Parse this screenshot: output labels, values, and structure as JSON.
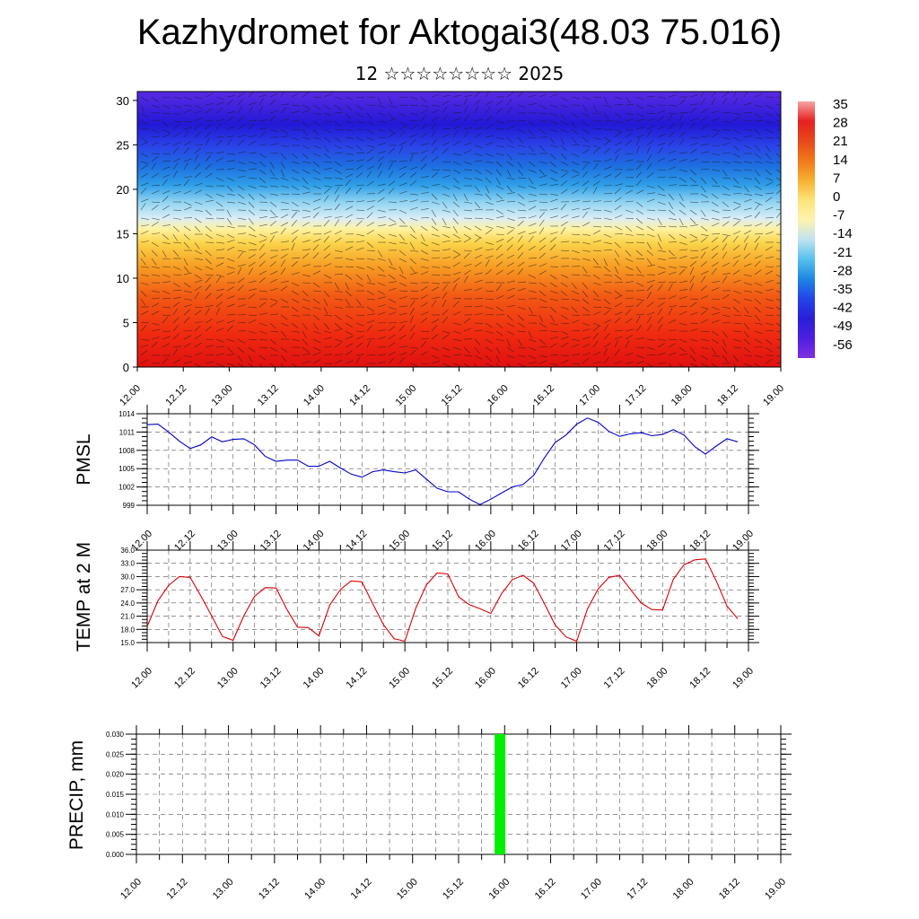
{
  "header": {
    "title": "Kazhydromet for Aktogai3(48.03 75.016)",
    "subtitle": "12 ☆☆☆☆☆☆☆☆ 2025"
  },
  "time_labels": [
    "12.00",
    "12.12",
    "13.00",
    "13.12",
    "14.00",
    "14.12",
    "15.00",
    "15.12",
    "16.00",
    "16.12",
    "17.00",
    "17.12",
    "18.00",
    "18.12",
    "19.00"
  ],
  "chart_data": [
    {
      "type": "heatmap",
      "title": "",
      "x_labels": [
        "12.00",
        "12.12",
        "13.00",
        "13.12",
        "14.00",
        "14.12",
        "15.00",
        "15.12",
        "16.00",
        "16.12",
        "17.00",
        "17.12",
        "18.00",
        "18.12",
        "19.00"
      ],
      "y_ticks": [
        "0",
        "5",
        "10",
        "15",
        "20",
        "25",
        "30"
      ],
      "ylim": [
        0,
        31
      ],
      "colorbar": {
        "labels": [
          "35",
          "28",
          "21",
          "14",
          "7",
          "0",
          "-7",
          "-14",
          "-21",
          "-28",
          "-35",
          "-42",
          "-49",
          "-56"
        ],
        "range": [
          35,
          -56
        ],
        "colors": [
          "#f7a4a4",
          "#e62020",
          "#e8481a",
          "#f07a1a",
          "#f7b032",
          "#fde47a",
          "#fef3b0",
          "#bfe3f2",
          "#57c0ee",
          "#1e86e2",
          "#2244e8",
          "#2a1ed8",
          "#4e1ee0",
          "#8030e0"
        ]
      },
      "overlay": "wind vectors"
    },
    {
      "type": "line",
      "ylabel": "PMSL",
      "ylim": [
        999,
        1014
      ],
      "y_ticks": [
        "1014",
        "1011",
        "1008",
        "1005",
        "1002",
        "999"
      ],
      "x_labels": [
        "12.00",
        "12.12",
        "13.00",
        "13.12",
        "14.00",
        "14.12",
        "15.00",
        "15.12",
        "16.00",
        "16.12",
        "17.00",
        "17.12",
        "18.00",
        "18.12",
        "19.00"
      ],
      "x": [
        0,
        0.25,
        0.5,
        0.75,
        1,
        1.25,
        1.5,
        1.75,
        2,
        2.25,
        2.5,
        2.75,
        3,
        3.25,
        3.5,
        3.75,
        4,
        4.25,
        4.5,
        4.75,
        5,
        5.25,
        5.5,
        5.75,
        6,
        6.25,
        6.5,
        6.75,
        7,
        7.25,
        7.5,
        7.75,
        8,
        8.25,
        8.5,
        8.75,
        9,
        9.25,
        9.5,
        9.75,
        10,
        10.25,
        10.5,
        10.75,
        11,
        11.25,
        11.5,
        11.75,
        12,
        12.25,
        12.5,
        12.75,
        13,
        13.25,
        13.5,
        13.75
      ],
      "series": [
        {
          "color": "#0000cc",
          "values": [
            1012.2,
            1012.3,
            1011,
            1009.5,
            1008.3,
            1008.9,
            1010.2,
            1009.4,
            1009.8,
            1009.9,
            1008.9,
            1007,
            1006.2,
            1006.4,
            1006.4,
            1005.4,
            1005.4,
            1006.2,
            1005.1,
            1004.1,
            1003.6,
            1004.5,
            1004.8,
            1004.5,
            1004.3,
            1004.8,
            1003.3,
            1001.8,
            1001.2,
            1001.2,
            1000,
            999.1,
            1000,
            1001,
            1002,
            1002.4,
            1003.9,
            1006.8,
            1009.3,
            1010.5,
            1012.3,
            1013.3,
            1012.6,
            1011.1,
            1010.3,
            1010.7,
            1010.9,
            1010.4,
            1010.6,
            1011.4,
            1010.5,
            1008.6,
            1007.4,
            1008.7,
            1009.9,
            1009.4
          ]
        }
      ]
    },
    {
      "type": "line",
      "ylabel": "TEMP at 2 M",
      "ylim": [
        15,
        36
      ],
      "y_ticks": [
        "36.0",
        "33.0",
        "30.0",
        "27.0",
        "24.0",
        "21.0",
        "18.0",
        "15.0"
      ],
      "x_labels": [
        "12.00",
        "12.12",
        "13.00",
        "13.12",
        "14.00",
        "14.12",
        "15.00",
        "15.12",
        "16.00",
        "16.12",
        "17.00",
        "17.12",
        "18.00",
        "18.12",
        "19.00"
      ],
      "x": [
        0,
        0.25,
        0.5,
        0.75,
        1,
        1.25,
        1.5,
        1.75,
        2,
        2.25,
        2.5,
        2.75,
        3,
        3.25,
        3.5,
        3.75,
        4,
        4.25,
        4.5,
        4.75,
        5,
        5.25,
        5.5,
        5.75,
        6,
        6.25,
        6.5,
        6.75,
        7,
        7.25,
        7.5,
        7.75,
        8,
        8.25,
        8.5,
        8.75,
        9,
        9.25,
        9.5,
        9.75,
        10,
        10.25,
        10.5,
        10.75,
        11,
        11.25,
        11.5,
        11.75,
        12,
        12.25,
        12.5,
        12.75,
        13,
        13.25,
        13.5,
        13.75
      ],
      "series": [
        {
          "color": "#dd0000",
          "values": [
            18.7,
            24.5,
            28,
            30,
            29.8,
            25.6,
            21.1,
            16.4,
            15.5,
            21.1,
            25.5,
            27.5,
            27.4,
            22.6,
            18.5,
            18.4,
            16.5,
            23.5,
            27.1,
            29,
            28.8,
            23.8,
            19.1,
            15.9,
            15.3,
            22.7,
            28.1,
            30.8,
            30.6,
            25.4,
            23.6,
            22.7,
            21.6,
            26.1,
            29.3,
            30.3,
            28.5,
            23.8,
            19,
            16.3,
            15.3,
            22.6,
            27.2,
            29.8,
            30.3,
            27.1,
            24,
            22.5,
            22.4,
            29.4,
            32.7,
            33.8,
            34,
            29,
            23.3,
            20.4
          ]
        }
      ]
    },
    {
      "type": "bar",
      "ylabel": "PRECIP, mm",
      "ylim": [
        0,
        0.03
      ],
      "y_ticks": [
        "0.030",
        "0.025",
        "0.020",
        "0.015",
        "0.010",
        "0.005",
        "0.000"
      ],
      "x_labels": [
        "12.00",
        "12.12",
        "13.00",
        "13.12",
        "14.00",
        "14.12",
        "15.00",
        "15.12",
        "16.00",
        "16.12",
        "17.00",
        "17.12",
        "18.00",
        "18.12",
        "19.00"
      ],
      "bars": [
        {
          "x": 7.9,
          "value": 0.03
        }
      ],
      "bar_color": "#00ee00"
    }
  ]
}
